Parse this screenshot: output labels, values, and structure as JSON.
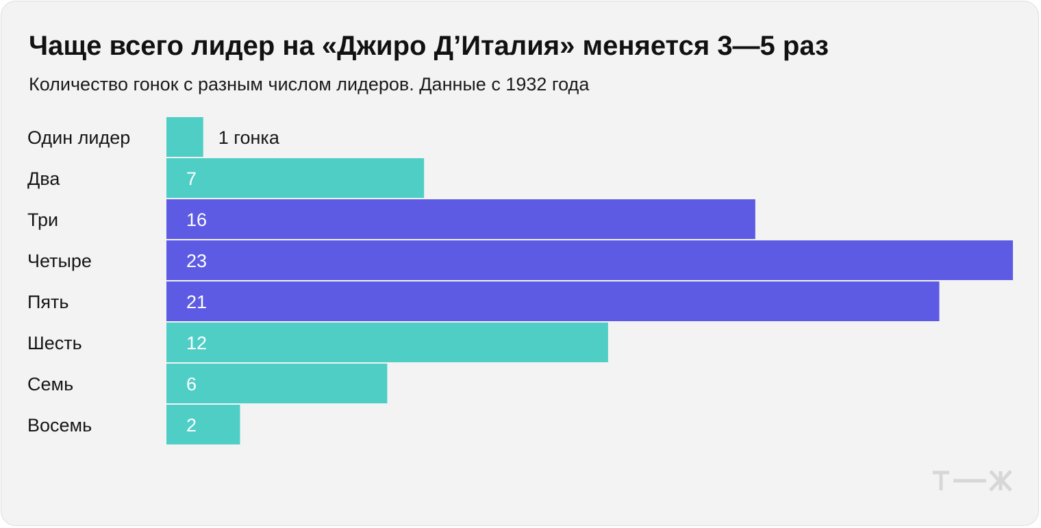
{
  "title": "Чаще всего лидер на «Джиро Д’Италия» меняется 3—5 раз",
  "subtitle": "Количество гонок с разным числом лидеров. Данные с 1932 года",
  "colors": {
    "background": "#f3f3f3",
    "teal": "#4fcec6",
    "violet": "#5d5be3",
    "logo": "#d7d7d7"
  },
  "logo_text": "т—ж",
  "chart_data": {
    "type": "bar",
    "orientation": "horizontal",
    "title": "Чаще всего лидер на «Джиро Д’Италия» меняется 3—5 раз",
    "subtitle": "Количество гонок с разным числом лидеров. Данные с 1932 года",
    "categories": [
      "Один лидер",
      "Два",
      "Три",
      "Четыре",
      "Пять",
      "Шесть",
      "Семь",
      "Восемь"
    ],
    "values": [
      1,
      7,
      16,
      23,
      21,
      12,
      6,
      2
    ],
    "labels": [
      "1 гонка",
      "7",
      "16",
      "23",
      "21",
      "12",
      "6",
      "2"
    ],
    "highlight": [
      false,
      false,
      true,
      true,
      true,
      false,
      false,
      false
    ],
    "xlim": [
      0,
      23
    ],
    "xlabel": "",
    "ylabel": "",
    "grid": false,
    "legend": "none"
  }
}
